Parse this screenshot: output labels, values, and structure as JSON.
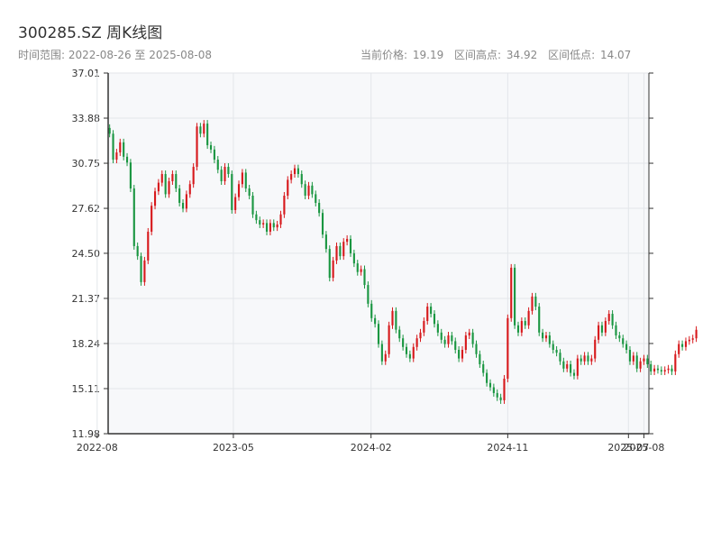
{
  "header": {
    "title": "300285.SZ 周K线图",
    "range_label": "时间范围: 2022-08-26 至 2025-08-08",
    "current_price": "当前价格: 19.19",
    "high": "区间高点: 34.92",
    "low": "区间低点: 14.07"
  },
  "colors": {
    "up": "#d7191c",
    "down": "#1a9641",
    "plot_bg": "#f7f8fa",
    "grid": "#e3e6ea",
    "axis": "#333333"
  },
  "chart_data": {
    "type": "candlestick",
    "title": "300285.SZ 周K线图",
    "ylim": [
      11.98,
      37.01
    ],
    "y_ticks": [
      "11.98",
      "15.11",
      "18.24",
      "21.37",
      "24.50",
      "27.62",
      "30.75",
      "33.88",
      "37.01"
    ],
    "x_ticks": [
      "2022-08",
      "2023-05",
      "2024-02",
      "2024-11",
      "2025-07",
      "2025-08"
    ],
    "x_tick_dates": [
      "2022-08-01",
      "2023-05-01",
      "2024-02-01",
      "2024-11-01",
      "2025-07-01",
      "2025-08-01"
    ],
    "grid": true,
    "start_date": "2022-08-26",
    "end_date": "2025-08-08",
    "closes": [
      32.8,
      31.0,
      31.5,
      32.2,
      31.2,
      30.8,
      29.0,
      25.0,
      24.3,
      22.5,
      24.0,
      26.0,
      27.8,
      28.8,
      29.4,
      30.0,
      28.6,
      29.5,
      30.0,
      29.0,
      28.0,
      27.6,
      28.6,
      29.3,
      30.5,
      33.3,
      32.8,
      33.5,
      32.0,
      31.7,
      31.0,
      30.3,
      29.5,
      30.5,
      30.0,
      27.5,
      28.4,
      29.3,
      30.1,
      29.0,
      28.5,
      27.2,
      26.8,
      26.5,
      26.6,
      26.0,
      26.6,
      26.3,
      26.5,
      27.2,
      28.5,
      29.6,
      30.0,
      30.4,
      30.0,
      29.3,
      28.5,
      29.2,
      28.6,
      28.0,
      27.3,
      25.8,
      24.8,
      22.8,
      24.0,
      25.0,
      24.3,
      25.3,
      25.5,
      24.5,
      23.8,
      23.2,
      23.4,
      22.3,
      21.0,
      20.0,
      19.6,
      18.2,
      17.0,
      17.5,
      19.5,
      20.5,
      19.2,
      18.6,
      18.0,
      17.5,
      17.2,
      18.0,
      18.6,
      19.0,
      19.8,
      20.8,
      20.3,
      19.6,
      19.0,
      18.5,
      18.2,
      18.8,
      18.4,
      17.8,
      17.2,
      17.8,
      18.8,
      19.0,
      18.2,
      17.5,
      16.8,
      16.2,
      15.5,
      15.2,
      14.8,
      14.5,
      14.3,
      15.8,
      20.0,
      23.5,
      19.5,
      19.0,
      19.8,
      19.5,
      20.5,
      21.5,
      20.8,
      19.0,
      18.6,
      18.8,
      18.2,
      17.8,
      17.6,
      17.0,
      16.5,
      16.8,
      16.2,
      16.0,
      17.2,
      17.0,
      17.4,
      17.0,
      17.2,
      18.5,
      19.5,
      19.0,
      19.8,
      20.3,
      19.5,
      18.8,
      18.6,
      18.2,
      17.8,
      17.0,
      17.4,
      16.5,
      17.0,
      17.2,
      16.8,
      16.3,
      16.5,
      16.4,
      16.3,
      16.4,
      16.5,
      16.3,
      17.5,
      18.2,
      18.0,
      18.4,
      18.5,
      18.6,
      19.19
    ]
  }
}
